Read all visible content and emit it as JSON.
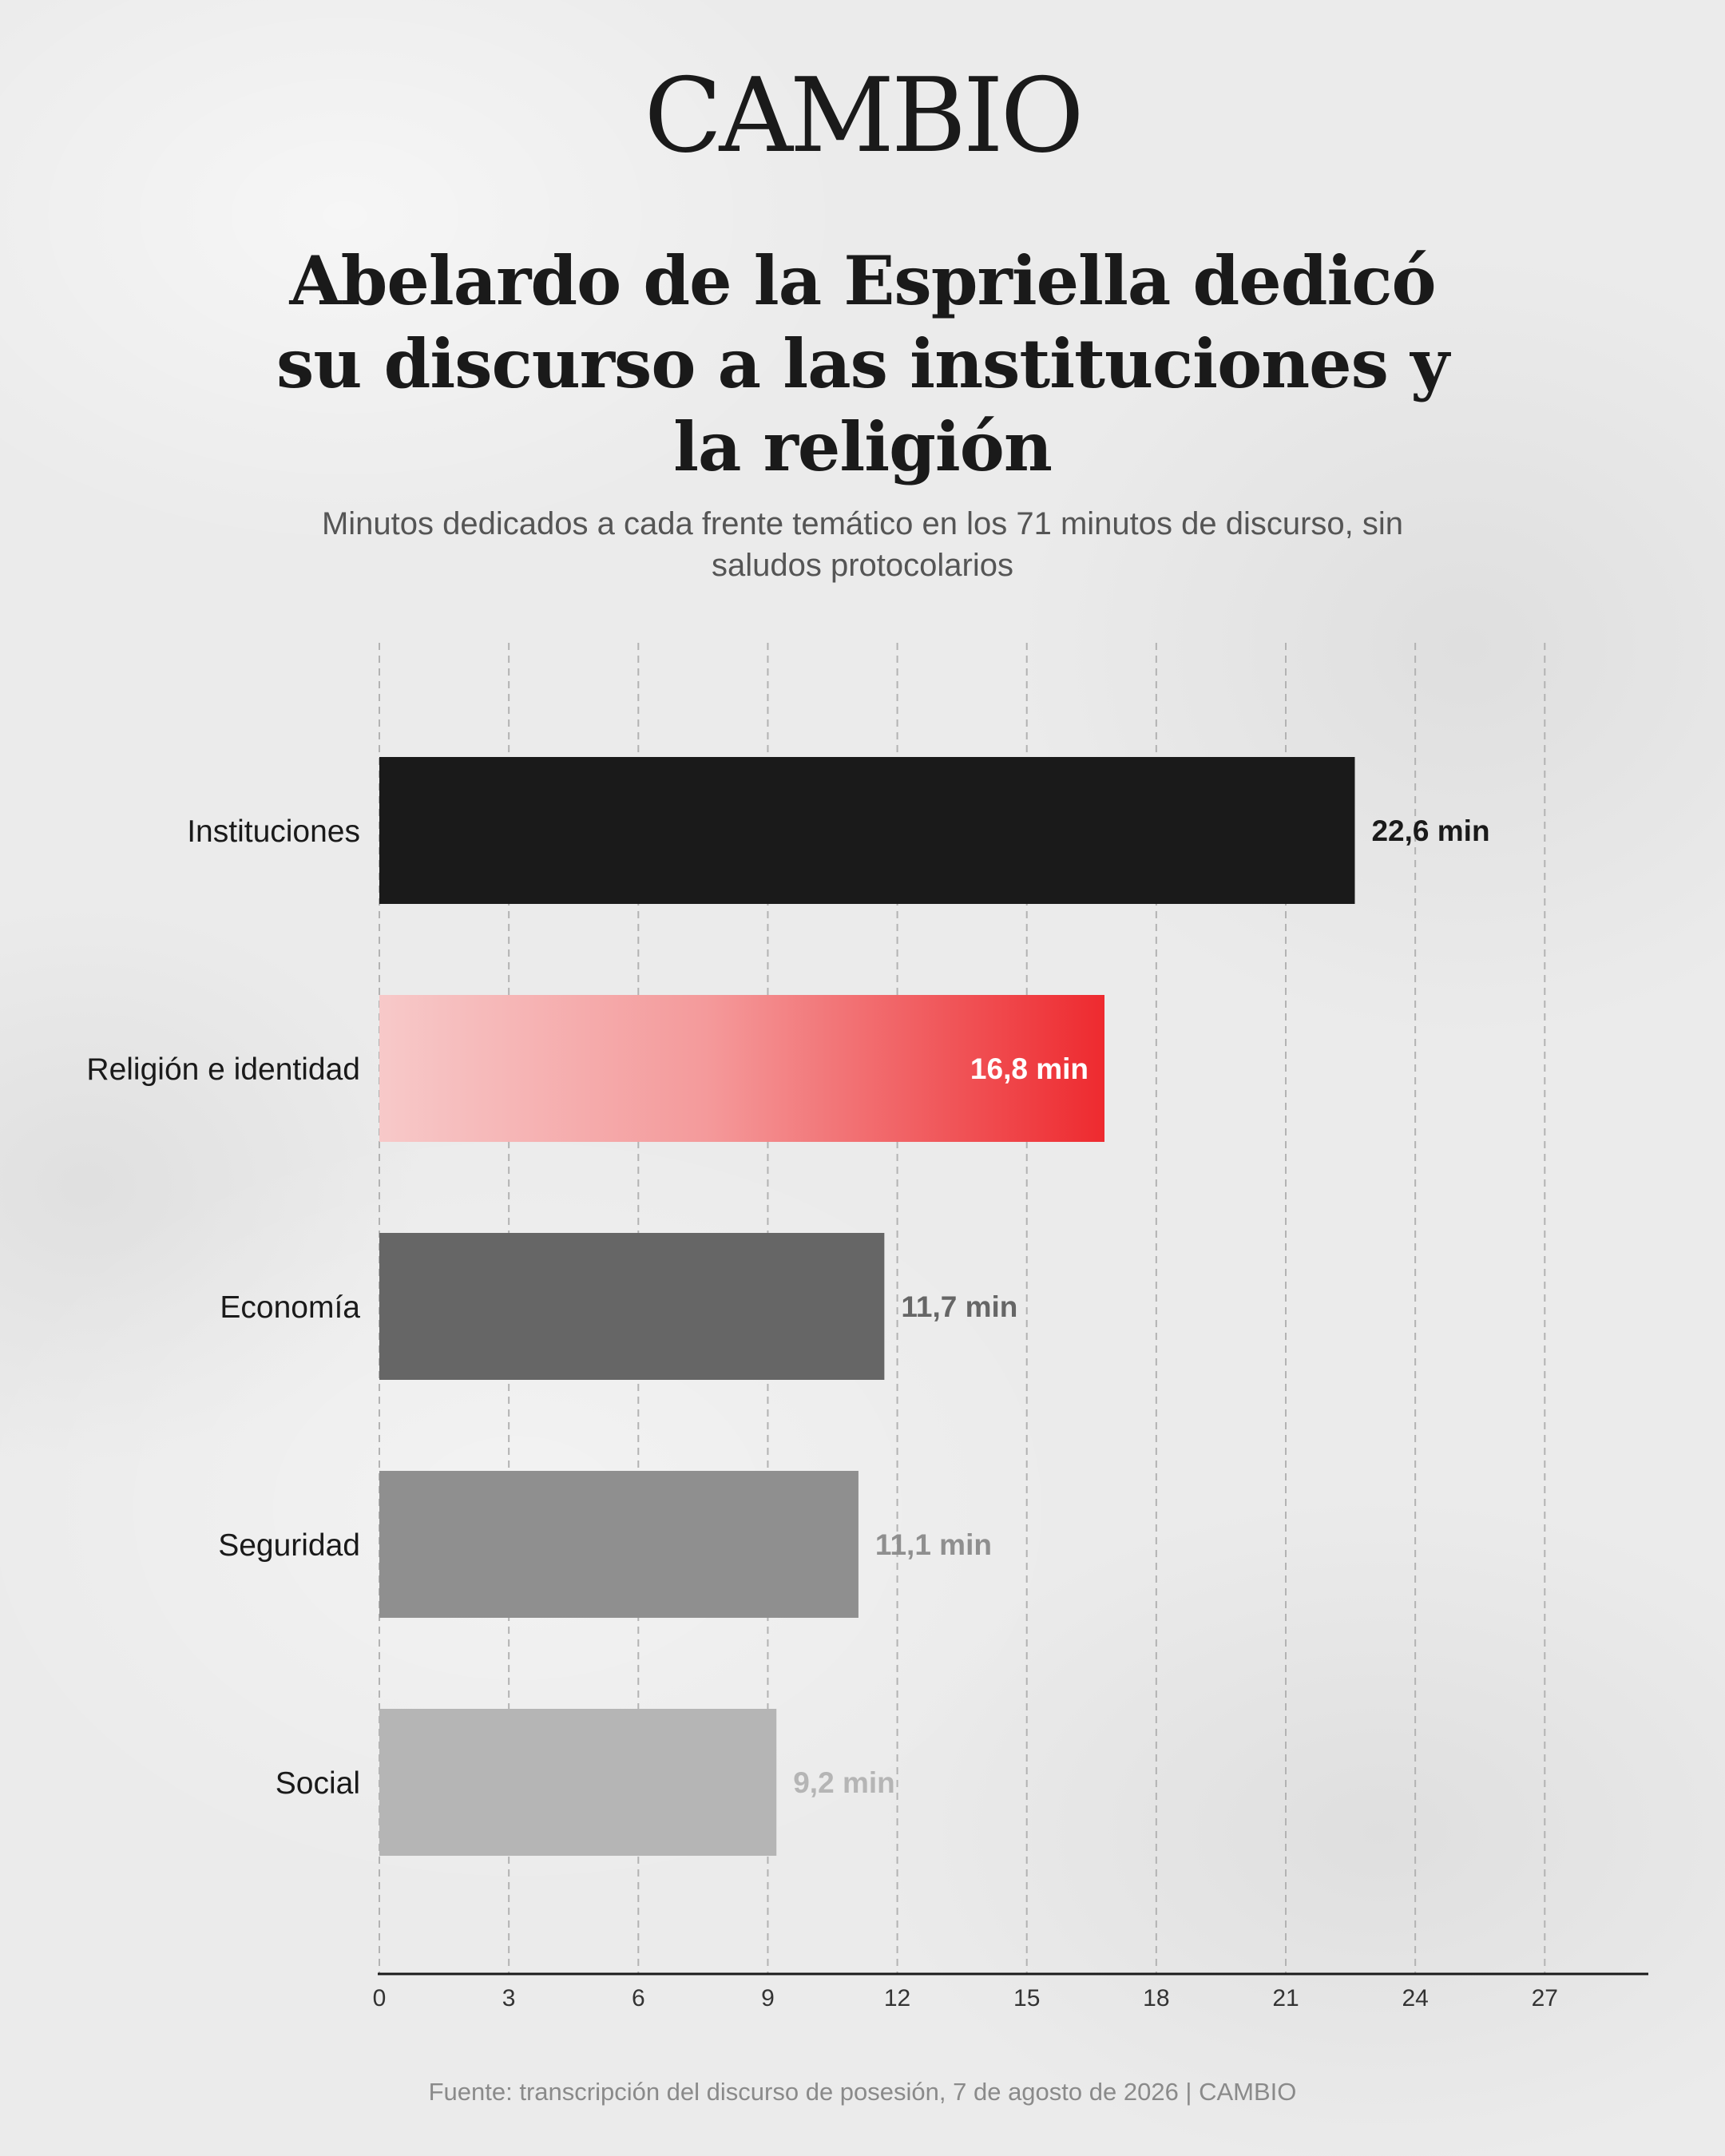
{
  "brand": "CAMBIO",
  "title": "Abelardo de la Espriella dedicó su discurso a las instituciones y la religión",
  "subtitle": "Minutos dedicados a cada frente temático en los 71 minutos de discurso, sin saludos protocolarios",
  "source": "Fuente: transcripción del discurso de posesión, 7 de agosto de 2026 | CAMBIO",
  "chart_data": {
    "type": "bar",
    "orientation": "horizontal",
    "categories": [
      "Instituciones",
      "Religión e identidad",
      "Economía",
      "Seguridad",
      "Social"
    ],
    "values": [
      22.6,
      16.8,
      11.7,
      11.1,
      9.2
    ],
    "value_labels": [
      "22,6 min",
      "16,8 min",
      "11,7 min",
      "11,1 min",
      "9,2 min"
    ],
    "bar_colors": [
      "#1a1a1a",
      "gradient:#f7c6c6-#ee2a2f",
      "#666666",
      "#8f8f8f",
      "#b5b5b5"
    ],
    "label_colors": [
      "#1a1a1a",
      "#ffffff",
      "#666666",
      "#8f8f8f",
      "#b5b5b5"
    ],
    "xlim": [
      0,
      29.4
    ],
    "xticks": [
      0,
      3,
      6,
      9,
      12,
      15,
      18,
      21,
      24,
      27
    ],
    "grid": "vertical dashed",
    "xlabel": "",
    "ylabel": ""
  }
}
